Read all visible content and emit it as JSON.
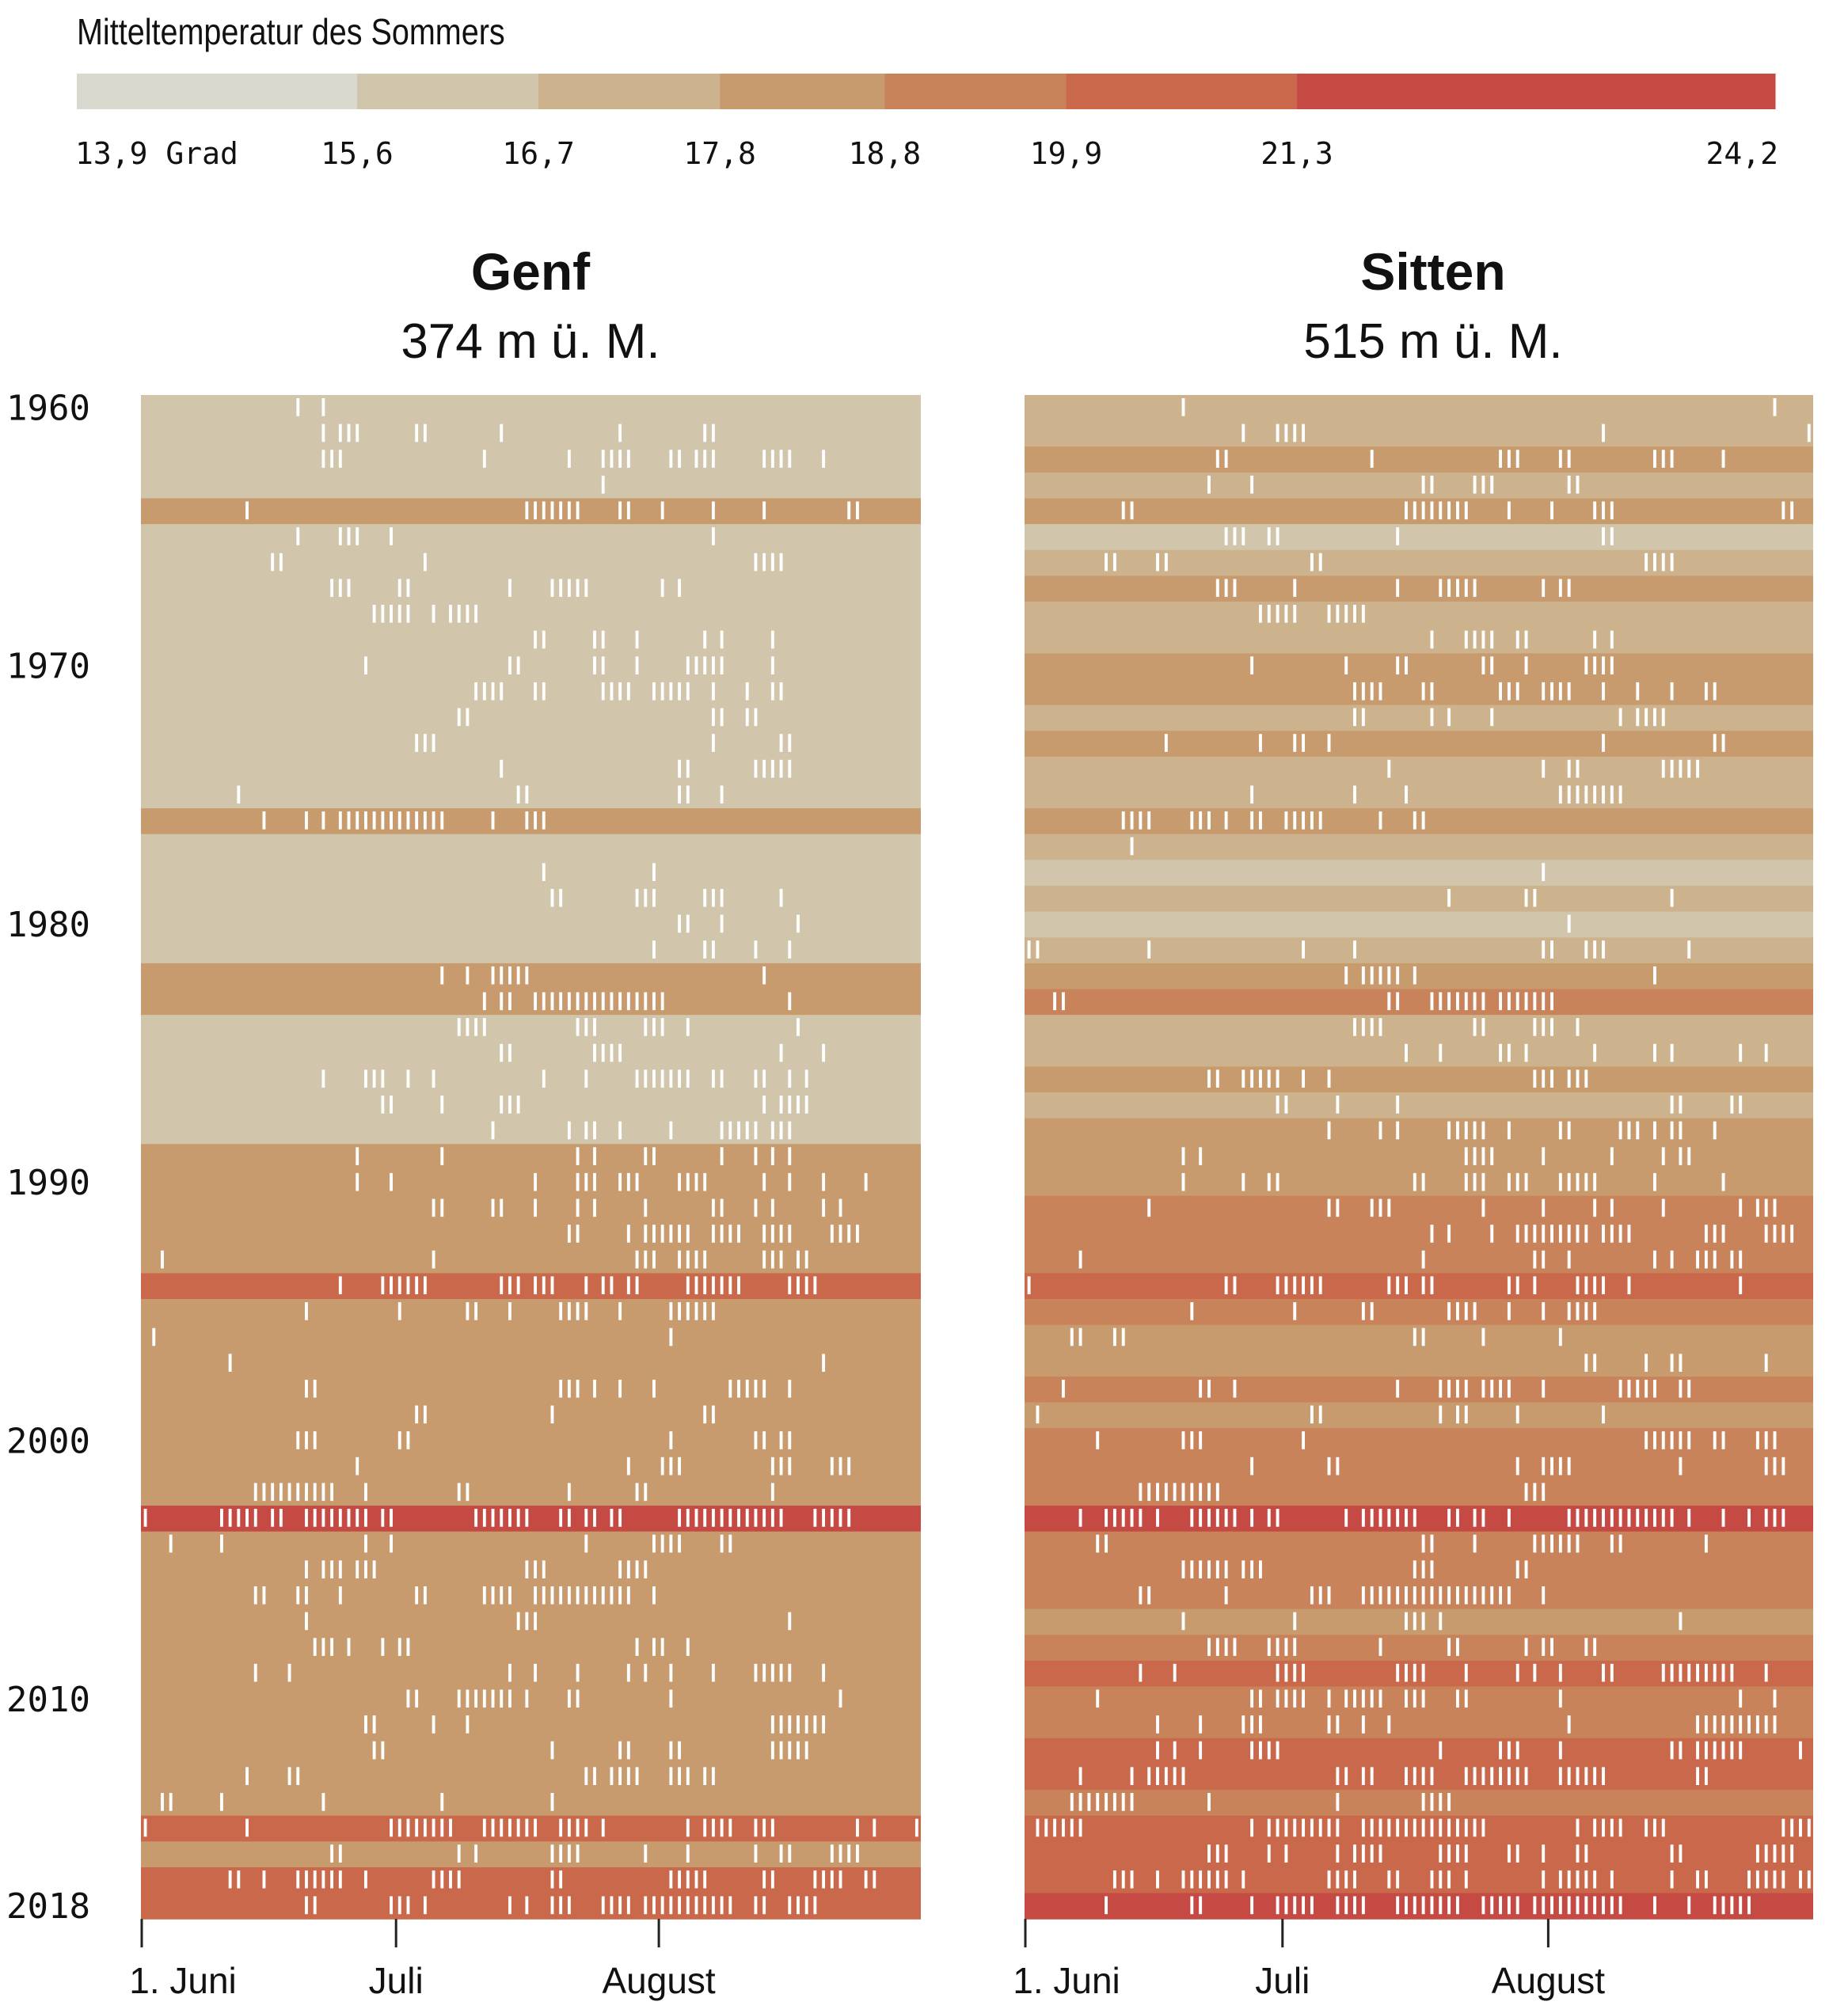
{
  "chart_data": {
    "type": "heatmap",
    "title": "Mitteltemperatur des Sommers",
    "legend": {
      "unit_label": "13,9 Grad",
      "breaks": [
        "13,9",
        "15,6",
        "16,7",
        "17,8",
        "18,8",
        "19,9",
        "21,3",
        "24,2"
      ],
      "break_values": [
        13.9,
        15.6,
        16.7,
        17.8,
        18.8,
        19.9,
        21.3,
        24.2
      ],
      "colors": [
        "#DAD9D0",
        "#D1C6AC",
        "#CDB38D",
        "#C89B6E",
        "#C9835A",
        "#C9684A",
        "#C54A44"
      ]
    },
    "x_axis": {
      "days_in_period": 92,
      "ticks": [
        {
          "label": "1. Juni",
          "day": 0
        },
        {
          "label": "Juli",
          "day": 30
        },
        {
          "label": "August",
          "day": 61
        }
      ]
    },
    "y_axis": {
      "first_year": 1960,
      "last_year": 2018,
      "tick_labels": [
        "1960",
        "1970",
        "1980",
        "1990",
        "2000",
        "2010",
        "2018"
      ],
      "tick_years": [
        1960,
        1970,
        1980,
        1990,
        2000,
        2010,
        2018
      ]
    },
    "note": "Row colour = summer mean temperature class (1-7 = legend bins); white marks = individual hot days (day index from 1 June).",
    "panels": [
      {
        "name": "Genf",
        "elevation": "374 m ü. M.",
        "levels": [
          2,
          2,
          2,
          2,
          4,
          2,
          2,
          2,
          2,
          2,
          2,
          2,
          2,
          2,
          2,
          2,
          4,
          2,
          2,
          2,
          2,
          2,
          4,
          4,
          2,
          2,
          2,
          2,
          2,
          4,
          4,
          4,
          4,
          4,
          6,
          4,
          4,
          4,
          4,
          4,
          4,
          4,
          4,
          7,
          4,
          4,
          4,
          4,
          4,
          4,
          4,
          4,
          4,
          4,
          4,
          6,
          4,
          6,
          6
        ],
        "hot_days": [
          "18,21",
          "21,23-25,32,33,42,56,66,67",
          "21-23,40,50,54-57,62,63,65-67,73-76,80",
          "54",
          "12,45-51,56,57,61,67,73,83,84",
          "18,23-25,29,67",
          "15,16,33,72-75",
          "22-24,30,31,43,48-52,61,63",
          "27-31,34,36-39",
          "46,47,53,54,58,66,68,74",
          "26,43,44,53,54,58,64-68,74",
          "39-42,46,47,54-57,60-64,67,71,74,75",
          "37,38,67,68,71,72",
          "32,33,34,67,75,76",
          "42,63,64,72-76",
          "11,44,45,63,64,68",
          "14,19,21,23-35,41,45-47",
          "",
          "47,60",
          "48,49,58-60,66-68,75",
          "63,64,68,77",
          "60,66,67,72,76",
          "35,38,41-45,73",
          "40,42,43,46-61,76",
          "37-40,51-53,59-61,64,77",
          "42,43,53-56,75,80",
          "21,26-28,31,34,47,52,58-64,67,68,72,73,76,78",
          "28,29,35,42-44,73,75-78",
          "41,50,52,53,56,62,68-72,74-76",
          "25,35,51,53,59,60,68,72,74,76",
          "25,29,46,51-53,56-58,63-66,73,76,80,85",
          "34,35,41,42,46,51,53,59,67,68,72,74,80,82",
          "50,51,57,59-64,67-70,73-76,81-84",
          "2,34,58-60,63-66,73-75,77,78",
          "23,28-33,42-44,46-48,52,54,55,57,58,64-70,76-79",
          "19,30,38,39,43,49-52,56,62-67",
          "1,62",
          "10,80",
          "19,20,49-51,53,56,60,69-73,76",
          "32,33,48,66,67",
          "18-20,30,31,62,72,73,75,76",
          "25,57,61-63,74-76,81-83",
          "13-22,26,37,38,50,58,59,74",
          "0,9-13,15,16,19-26,28,29,39-45,49,50,52,53,55,56,63-75,79-83",
          "3,9,26,29,52,60-63,68,69",
          "19,21-23,25-27,45-47,56-59",
          "13,14,18,19,23,32,33,40-43,46-57,60",
          "19,44-46,76",
          "20-22,24,28,30,31,58,60,61,64",
          "13,17,43,46,51,57,59,62,67,72-76,80",
          "31,32,37-43,45,50,51,62,82",
          "26,27,34,38,74-80",
          "27,28,48,56,57,62,63,74-78",
          "12,17,18,52,53,55-58,62-64,66,67",
          "2,3,9,21,35,48",
          "0,12,29-36,40-46,49-52,54,64,66-69,72-74,84,86,91",
          "22,23,37,39,48-51,59,64,72,75,76,81-84",
          "10,11,14,18-23,26,34-37,48,49,62-66,73,74,79-82,85,86",
          "19,20,29-31,33,43,45,48-50,54-57,59-69,72,73,76-79"
        ]
      },
      {
        "name": "Sitten",
        "elevation": "515 m ü. M.",
        "levels": [
          3,
          3,
          4,
          3,
          4,
          2,
          3,
          4,
          3,
          3,
          4,
          4,
          3,
          4,
          3,
          3,
          4,
          3,
          2,
          3,
          2,
          3,
          4,
          5,
          3,
          3,
          4,
          3,
          4,
          4,
          4,
          5,
          5,
          5,
          6,
          5,
          4,
          4,
          5,
          4,
          5,
          5,
          5,
          7,
          5,
          5,
          5,
          4,
          5,
          6,
          5,
          5,
          6,
          6,
          5,
          6,
          6,
          6,
          7
        ],
        "hot_days": [
          "18,87",
          "25,29-32,67,91",
          "22,23,40,55-57,62,63,73-75,81",
          "21,26,46,47,52-54,63,64",
          "11,12,44-51,56,61,66-68,88,89",
          "23-25,28,29,43,67,68",
          "9,10,15,16,33,34,72-75",
          "22-24,31,43,48-52,60,62,63",
          "27-31,35,36-39",
          "47,51-54,57,58,66,68",
          "26,37,43,44,53,54,58,65-68",
          "38-41,46,47,55-57,60-63,67,71,75,79,80",
          "38,39,47,49,54,69,71-74",
          "16,27,31,32,35,67,80,81",
          "42,60,63,64,74-78",
          "26,38,44,62-69",
          "11-14,19-21,23,26,27,30-34,41,45,46",
          "12",
          "60",
          "49,58,59,75",
          "63",
          "0,1,14,32,38,60,61,65-67,77",
          "37,39-43,45,73",
          "3,4,42,43,47-53,55-61",
          "38-41,52,53,59-61,64",
          "44,48,55,56,58,66,73,75,83,86",
          "21,22,25-29,32,35,59-61,63-65",
          "29,30,36,43,75,76,82,83",
          "35,41,43,49-53,56,62,63,69-71,73,75,76,80",
          "18,20,51-54,60,68,74,76,77",
          "18,25,28,29,45,46,51-53,56-58,62-66,73,81",
          "14,35,36,40-42,53,60,66,68,74,83,85-87",
          "47,49,54,57-65,67-70,79-81,86-89",
          "6,46,59,60,63,73,75,78-80,82,83",
          "0,23,24,29-34,42-44,46,47,56,57,59,64-67,70,83",
          "19,31,39,40,49-52,56,60,63-66",
          "5,6,10,11,45,46,53,62",
          "65,66,72,75,76,86",
          "4,20,21,24,43,48-51,53-56,60,69-73,76,77",
          "1,33,34,48,50,51,57,67",
          "8,18-20,32,72-77,80,81,85-87",
          "26,35,36,57,60-63,76,86-88",
          "13-22,58-60",
          "6,9-13,15,19-24,26,28,29,37,39-45,49,50,52,53,56,63-75,77,81,84,86-88",
          "8,9,46,47,52,59-64,68,69,79",
          "18-23,25-27,45-47,57,58",
          "13,14,23,33-35,39-56,60",
          "18,31,44-46,48,76",
          "21-24,28-31,41,49,50,58,60,61,65,66",
          "13,17,29-32,43-46,51,57,59,62,67,68,74-82,86",
          "8,26,27,29-32,35,37-41,44-46,50,51,62,83,87",
          "15,20,25-27,35,36,39,42,63,78-87",
          "15,17,20,26-29,48,55-57,62,75,76,78-83,90",
          "6,12,14-18,36,37,39,40,44-47,51-58,62-67,78,79",
          "5-12,21,36,46-49",
          "1-6,26,28-36,39-53,64,66-69,72-74,88-91",
          "21-23,28,30,36,38-41,48-51,56,57,60,64,65,75,76,85-89",
          "10-12,15,18-23,25,35-38,42,43,47-49,51,60,62-66,68,75,78,79,84-88,90,91",
          "9,19,20,26,29-33,36-39,43-50,53-57,59-69,73,77,80-84"
        ]
      }
    ]
  }
}
